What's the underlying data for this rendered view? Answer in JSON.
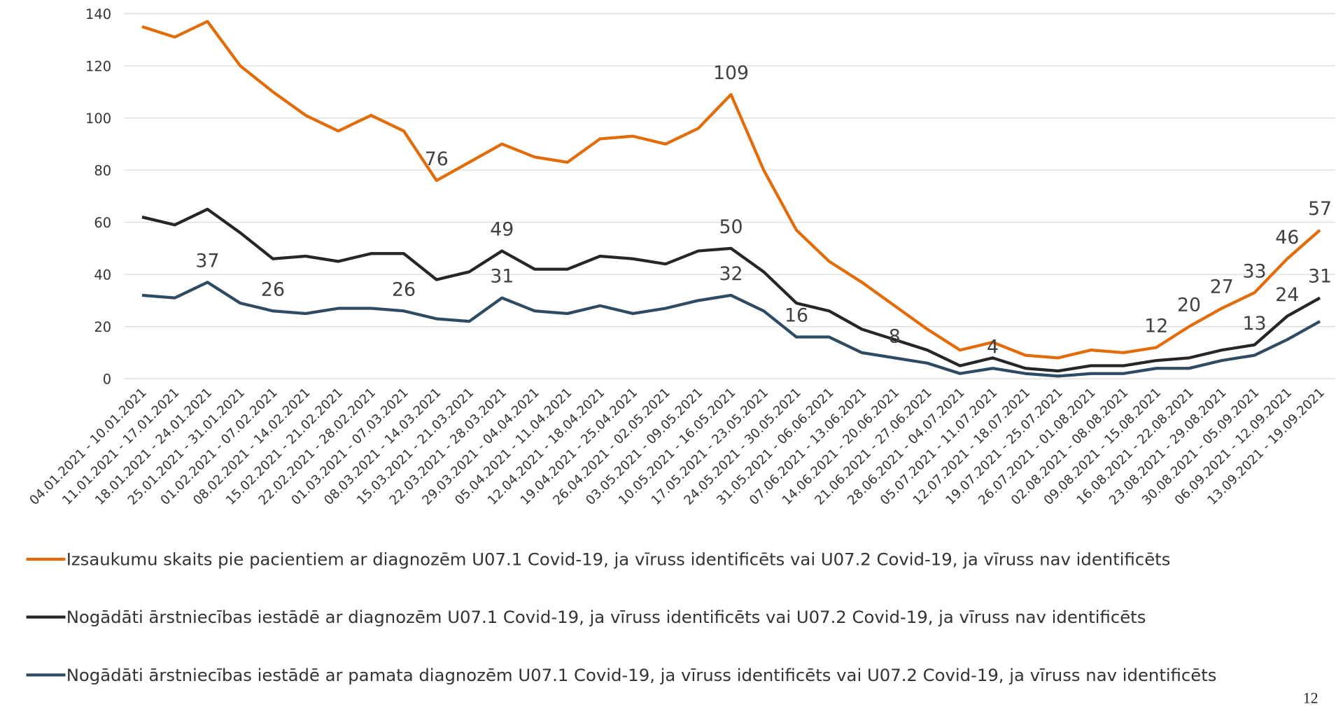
{
  "chart_data": {
    "type": "line",
    "categories": [
      "04.01.2021 - 10.01.2021",
      "11.01.2021 - 17.01.2021",
      "18.01.2021 - 24.01.2021",
      "25.01.2021 - 31.01.2021",
      "01.02.2021 - 07.02.2021",
      "08.02.2021 - 14.02.2021",
      "15.02.2021 - 21.02.2021",
      "22.02.2021 - 28.02.2021",
      "01.03.2021 - 07.03.2021",
      "08.03.2021 - 14.03.2021",
      "15.03.2021 - 21.03.2021",
      "22.03.2021 - 28.03.2021",
      "29.03.2021 - 04.04.2021",
      "05.04.2021 - 11.04.2021",
      "12.04.2021 - 18.04.2021",
      "19.04.2021 - 25.04.2021",
      "26.04.2021 - 02.05.2021",
      "03.05.2021 - 09.05.2021",
      "10.05.2021 - 16.05.2021",
      "17.05.2021 - 23.05.2021",
      "24.05.2021 - 30.05.2021",
      "31.05.2021 - 06.06.2021",
      "07.06.2021 - 13.06.2021",
      "14.06.2021 - 20.06.2021",
      "21.06.2021 - 27.06.2021",
      "28.06.2021 - 04.07.2021",
      "05.07.2021 - 11.07.2021",
      "12.07.2021 - 18.07.2021",
      "19.07.2021 - 25.07.2021",
      "26.07.2021 - 01.08.2021",
      "02.08.2021 - 08.08.2021",
      "09.08.2021 - 15.08.2021",
      "16.08.2021 - 22.08.2021",
      "23.08.2021 - 29.08.2021",
      "30.08.2021 - 05.09.2021",
      "06.09.2021 - 12.09.2021",
      "13.09.2021 - 19.09.2021"
    ],
    "series": [
      {
        "name": "Izsaukumu skaits pie pacientiem ar diagnozēm U07.1 Covid-19, ja vīruss identificēts vai U07.2 Covid-19, ja vīruss nav identificēts",
        "color": "#e36c0a",
        "values": [
          135,
          131,
          137,
          120,
          110,
          101,
          95,
          101,
          95,
          76,
          83,
          90,
          85,
          83,
          92,
          93,
          90,
          96,
          109,
          80,
          57,
          45,
          37,
          28,
          19,
          11,
          14,
          9,
          8,
          11,
          10,
          12,
          20,
          27,
          33,
          46,
          57
        ],
        "value_labels": [
          null,
          null,
          null,
          null,
          null,
          null,
          null,
          null,
          null,
          "76",
          null,
          null,
          null,
          null,
          null,
          null,
          null,
          null,
          "109",
          null,
          null,
          null,
          null,
          null,
          null,
          null,
          null,
          null,
          null,
          null,
          null,
          "12",
          "20",
          "27",
          "33",
          "46",
          "57"
        ]
      },
      {
        "name": "Nogādāti ārstniecības iestādē ar diagnozēm U07.1 Covid-19, ja vīruss identificēts vai U07.2 Covid-19, ja vīruss nav identificēts",
        "color": "#262626",
        "values": [
          62,
          59,
          65,
          56,
          46,
          47,
          45,
          48,
          48,
          38,
          41,
          49,
          42,
          42,
          47,
          46,
          44,
          49,
          50,
          41,
          29,
          26,
          19,
          15,
          11,
          5,
          8,
          4,
          3,
          5,
          5,
          7,
          8,
          11,
          13,
          24,
          31
        ],
        "value_labels": [
          null,
          null,
          null,
          null,
          null,
          null,
          null,
          null,
          null,
          null,
          null,
          "49",
          null,
          null,
          null,
          null,
          null,
          null,
          "50",
          null,
          null,
          null,
          null,
          null,
          null,
          null,
          null,
          null,
          null,
          null,
          null,
          null,
          null,
          null,
          "13",
          "24",
          "31"
        ]
      },
      {
        "name": "Nogādāti ārstniecības iestādē ar pamata diagnozēm U07.1 Covid-19, ja vīruss identificēts vai U07.2 Covid-19, ja vīruss nav identificēts",
        "color": "#2e4b63",
        "values": [
          32,
          31,
          37,
          29,
          26,
          25,
          27,
          27,
          26,
          23,
          22,
          31,
          26,
          25,
          28,
          25,
          27,
          30,
          32,
          26,
          16,
          16,
          10,
          8,
          6,
          2,
          4,
          2,
          1,
          2,
          2,
          4,
          4,
          7,
          9,
          15,
          22
        ],
        "value_labels": [
          null,
          null,
          "37",
          null,
          "26",
          null,
          null,
          null,
          "26",
          null,
          null,
          "31",
          null,
          null,
          null,
          null,
          null,
          null,
          "32",
          null,
          "16",
          null,
          null,
          "8",
          null,
          null,
          "4",
          null,
          null,
          null,
          null,
          null,
          null,
          null,
          null,
          null,
          null
        ]
      }
    ],
    "ylim": [
      0,
      140
    ],
    "yticks": [
      0,
      20,
      40,
      60,
      80,
      100,
      120,
      140
    ],
    "grid": true,
    "legend": "bottom"
  },
  "page_number": "12"
}
